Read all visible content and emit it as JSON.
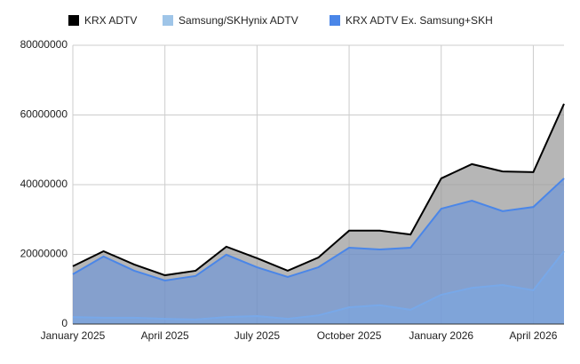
{
  "chart_data": {
    "type": "area",
    "categories": [
      "January 2025",
      null,
      null,
      "April 2025",
      null,
      null,
      "July 2025",
      null,
      null,
      "October 2025",
      null,
      null,
      "January 2026",
      null,
      null,
      "April 2026",
      null
    ],
    "series": [
      {
        "name": "KRX ADTV",
        "color": "#000000",
        "values": [
          16600000,
          20900000,
          17100000,
          14000000,
          15300000,
          22200000,
          18900000,
          15300000,
          19100000,
          26800000,
          26800000,
          25700000,
          41800000,
          45900000,
          43800000,
          43600000,
          63200000
        ]
      },
      {
        "name": "Samsung/SKHynix ADTV",
        "color": "#9fc5e8",
        "values": [
          2000000,
          1800000,
          1800000,
          1500000,
          1300000,
          2000000,
          2300000,
          1500000,
          2500000,
          4800000,
          5400000,
          4100000,
          8400000,
          10400000,
          11200000,
          9700000,
          20900000
        ]
      },
      {
        "name": "KRX ADTV Ex. Samsung+SKH",
        "color": "#4a86e8",
        "values": [
          14300000,
          19400000,
          15300000,
          12500000,
          13800000,
          19900000,
          16300000,
          13500000,
          16300000,
          21900000,
          21400000,
          21900000,
          33100000,
          35400000,
          32400000,
          33600000,
          41800000
        ]
      }
    ],
    "ylim": [
      0,
      80000000
    ],
    "yticks": [
      0,
      20000000,
      40000000,
      60000000,
      80000000
    ],
    "grid": true,
    "legend": "top"
  }
}
